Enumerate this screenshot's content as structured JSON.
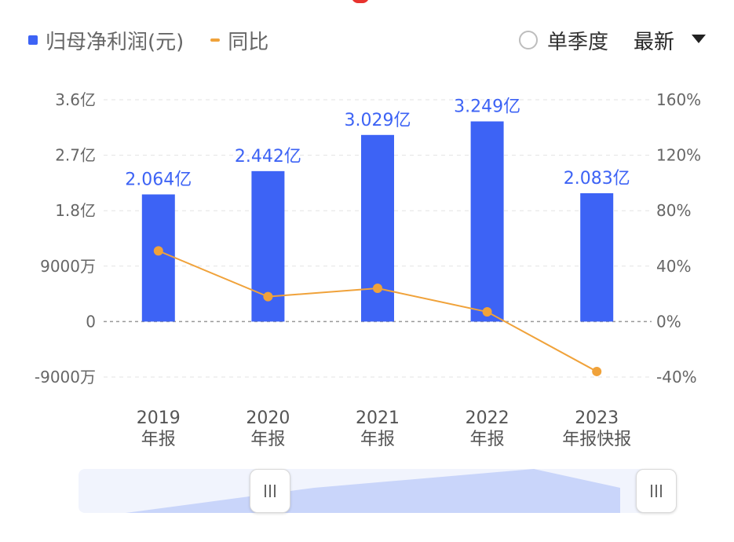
{
  "legend": {
    "bar_label": "归母净利润(元)",
    "line_label": "同比"
  },
  "controls": {
    "radio_label": "单季度",
    "dropdown_label": "最新"
  },
  "colors": {
    "bar": "#3d63f5",
    "line": "#f0a23a",
    "grid": "#e3e3e3",
    "zero_line": "#999999",
    "slider_fill": "#c9d5fa"
  },
  "chart_data": {
    "type": "bar",
    "categories": [
      [
        "2019",
        "年报"
      ],
      [
        "2020",
        "年报"
      ],
      [
        "2021",
        "年报"
      ],
      [
        "2022",
        "年报"
      ],
      [
        "2023",
        "年报快报"
      ]
    ],
    "series": [
      {
        "name": "归母净利润(元)",
        "type": "bar",
        "axis": "left",
        "values": [
          206400000,
          244200000,
          302900000,
          324900000,
          208300000
        ],
        "labels": [
          "2.064亿",
          "2.442亿",
          "3.029亿",
          "3.249亿",
          "2.083亿"
        ]
      },
      {
        "name": "同比",
        "type": "line",
        "axis": "right",
        "values": [
          51,
          18,
          24,
          7,
          -36
        ]
      }
    ],
    "y_left": {
      "ticks": [
        360000000,
        270000000,
        180000000,
        90000000,
        0,
        -90000000
      ],
      "tick_labels": [
        "3.6亿",
        "2.7亿",
        "1.8亿",
        "9000万",
        "0",
        "-9000万"
      ],
      "range": [
        -90000000,
        360000000
      ]
    },
    "y_right": {
      "ticks": [
        160,
        120,
        80,
        40,
        0,
        -40
      ],
      "tick_labels": [
        "160%",
        "120%",
        "80%",
        "40%",
        "0%",
        "-40%"
      ],
      "range": [
        -40,
        160
      ]
    },
    "grid": true,
    "legend_position": "top-left"
  }
}
